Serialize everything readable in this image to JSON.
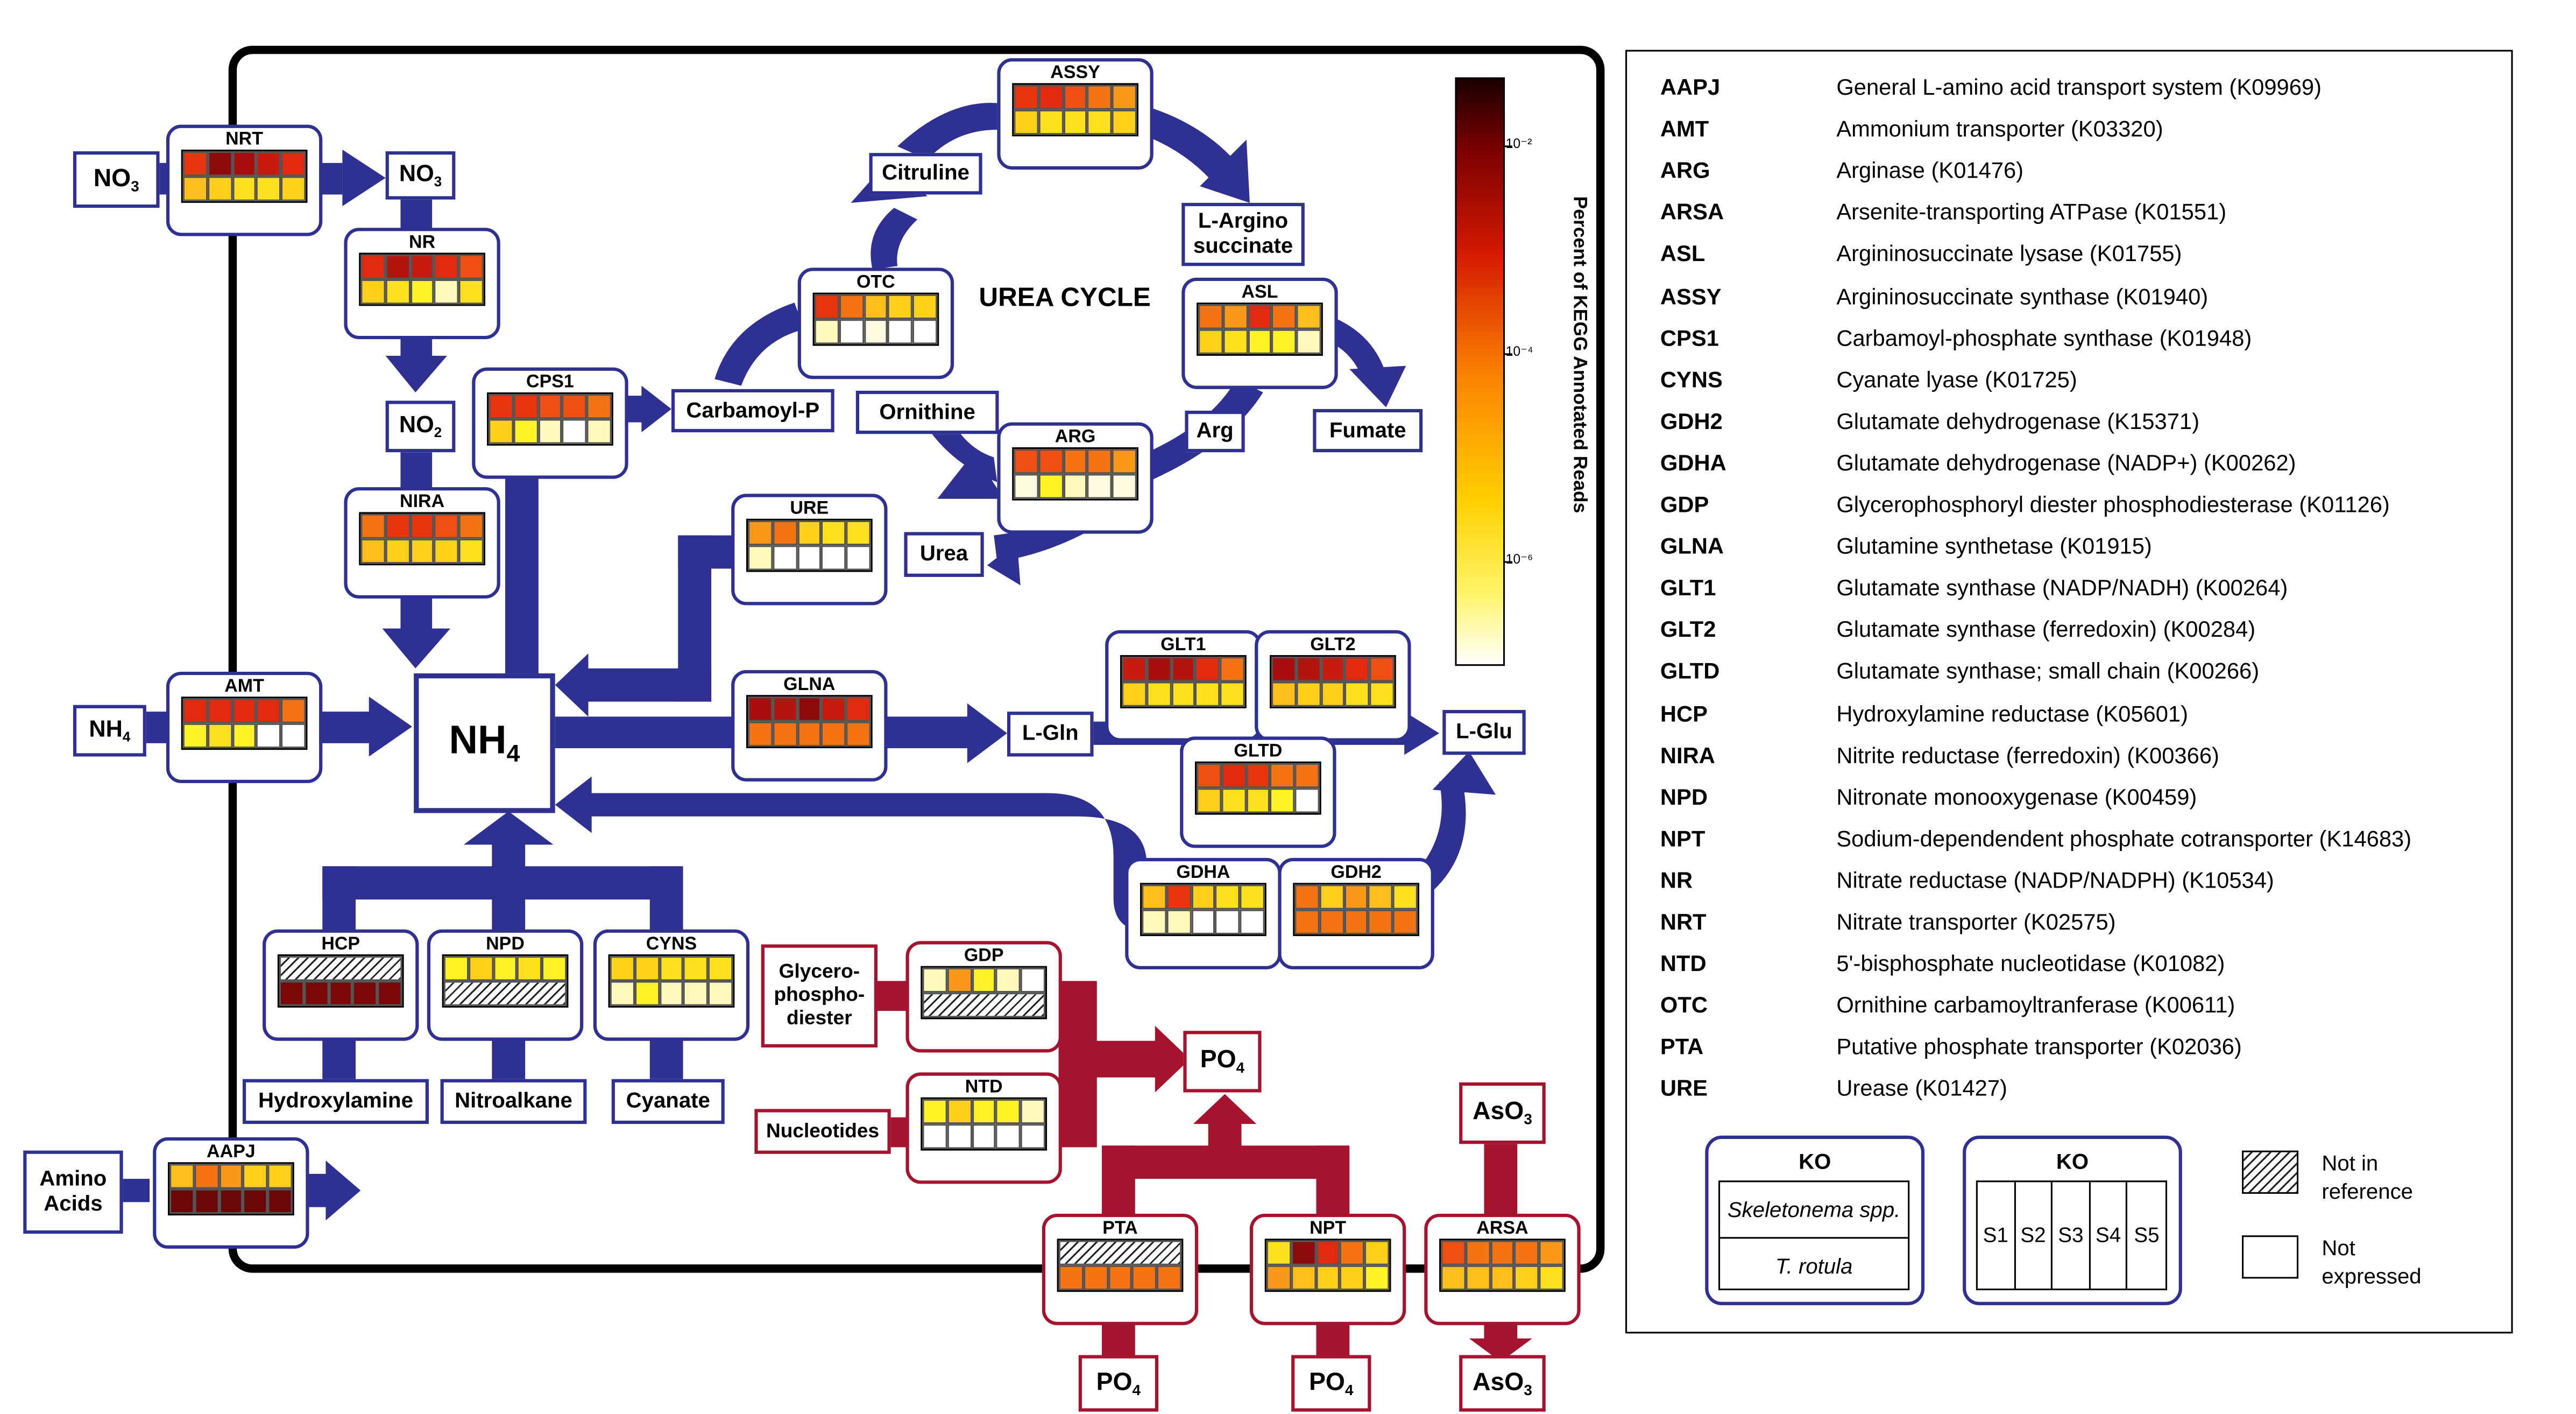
{
  "colors": {
    "blue": "#2e3192",
    "red": "#a5132e"
  },
  "colorbar": {
    "label": "Percent of KEGG Annotated Reads",
    "ticks": [
      "10⁻²",
      "10⁻⁴",
      "10⁻⁶"
    ]
  },
  "title": "UREA CYCLE",
  "nodes": {
    "no3_out": "NO3",
    "no3_in": "NO3",
    "no2": "NO2",
    "nh4_out": "NH4",
    "nh4_main": "NH4",
    "carbamoyl_p": "Carbamoyl-P",
    "citruline": "Citruline",
    "l_argino": "L-Argino succinate",
    "ornithine": "Ornithine",
    "arg": "Arg",
    "fumate": "Fumate",
    "urea": "Urea",
    "l_gln": "L-Gln",
    "l_glu": "L-Glu",
    "hydroxylamine": "Hydroxylamine",
    "nitroalkane": "Nitroalkane",
    "cyanate": "Cyanate",
    "amino_acids": "Amino Acids",
    "glycerophosphodiester": "Glycero-phospho-diester",
    "nucleotides": "Nucleotides",
    "po4_center": "PO4",
    "aso3_top": "AsO3",
    "po4_pta": "PO4",
    "po4_npt": "PO4",
    "aso3_bottom": "AsO3"
  },
  "kos": {
    "NRT": {
      "label": "NRT",
      "top": [
        "#e8340f",
        "#8e0a0a",
        "#a80e0e",
        "#c81a10",
        "#e3290f"
      ],
      "bottom": [
        "#ffbe19",
        "#ffcf1a",
        "#ffe21d",
        "#ffe21d",
        "#ffd21a"
      ]
    },
    "NR": {
      "label": "NR",
      "top": [
        "#e3290f",
        "#b41410",
        "#c81a10",
        "#e3290f",
        "#ef4f11"
      ],
      "bottom": [
        "#ffcf1a",
        "#ffe21d",
        "#fff226",
        "#fff9bc",
        "#ffe21d"
      ]
    },
    "NIRA": {
      "label": "NIRA",
      "top": [
        "#f47414",
        "#e8340f",
        "#e8340f",
        "#ef4f11",
        "#f47414"
      ],
      "bottom": [
        "#ffbe19",
        "#ffcf1a",
        "#ffcf1a",
        "#ffd21a",
        "#ffe21d"
      ]
    },
    "AMT": {
      "label": "AMT",
      "top": [
        "#e3290f",
        "#e3290f",
        "#e3290f",
        "#e3290f",
        "#f47414"
      ],
      "bottom": [
        "#fff226",
        "#ffe21d",
        "#fff226",
        "#ffffff",
        "#ffffff"
      ]
    },
    "CPS1": {
      "label": "CPS1",
      "top": [
        "#e8340f",
        "#e8340f",
        "#ef4f11",
        "#ef4f11",
        "#f47414"
      ],
      "bottom": [
        "#ffcf1a",
        "#fff226",
        "#fff9bc",
        "#ffffff",
        "#fff9bc"
      ]
    },
    "OTC": {
      "label": "OTC",
      "top": [
        "#e8340f",
        "#f47414",
        "#ffbe19",
        "#ffcf1a",
        "#ffd21a"
      ],
      "bottom": [
        "#fff9bc",
        "#ffffff",
        "#fffbe0",
        "#ffffff",
        "#ffffff"
      ]
    },
    "ASSY": {
      "label": "ASSY",
      "top": [
        "#e8340f",
        "#e3290f",
        "#ef4f11",
        "#f47414",
        "#fa981a"
      ],
      "bottom": [
        "#ffcf1a",
        "#ffe21d",
        "#ffe21d",
        "#ffe21d",
        "#ffd21a"
      ]
    },
    "ASL": {
      "label": "ASL",
      "top": [
        "#f47414",
        "#fa981a",
        "#e3290f",
        "#f47414",
        "#ffbe19"
      ],
      "bottom": [
        "#ffd21a",
        "#ffe21d",
        "#fff226",
        "#fff226",
        "#fff9bc"
      ]
    },
    "ARG": {
      "label": "ARG",
      "top": [
        "#ef4f11",
        "#ef4f11",
        "#f47414",
        "#f47414",
        "#fa981a"
      ],
      "bottom": [
        "#fffbe0",
        "#fff226",
        "#fff9bc",
        "#fffbe0",
        "#fffbe0"
      ]
    },
    "URE": {
      "label": "URE",
      "top": [
        "#fa981a",
        "#f47414",
        "#ffcf1a",
        "#ffe21d",
        "#ffe21d"
      ],
      "bottom": [
        "#fff9bc",
        "#ffffff",
        "#ffffff",
        "#ffffff",
        "#ffffff"
      ]
    },
    "GLNA": {
      "label": "GLNA",
      "top": [
        "#a80e0e",
        "#b41410",
        "#8e0a0a",
        "#c81a10",
        "#e3290f"
      ],
      "bottom": [
        "#f47414",
        "#f47414",
        "#f47414",
        "#f47414",
        "#f47414"
      ]
    },
    "GLT1": {
      "label": "GLT1",
      "top": [
        "#c81a10",
        "#a80e0e",
        "#b41410",
        "#e3290f",
        "#f47414"
      ],
      "bottom": [
        "#ffcf1a",
        "#ffe21d",
        "#ffe21d",
        "#ffe21d",
        "#ffe21d"
      ]
    },
    "GLT2": {
      "label": "GLT2",
      "top": [
        "#a80e0e",
        "#b41410",
        "#c81a10",
        "#e3290f",
        "#ef4f11"
      ],
      "bottom": [
        "#ffbe19",
        "#ffcf1a",
        "#ffcf1a",
        "#ffe21d",
        "#ffe21d"
      ]
    },
    "GLTD": {
      "label": "GLTD",
      "top": [
        "#ef4f11",
        "#e3290f",
        "#e8340f",
        "#f47414",
        "#f47414"
      ],
      "bottom": [
        "#ffcf1a",
        "#ffe21d",
        "#ffe21d",
        "#fff226",
        "#ffffff"
      ]
    },
    "GDHA": {
      "label": "GDHA",
      "top": [
        "#ffbe19",
        "#e8340f",
        "#ffcf1a",
        "#ffe21d",
        "#ffe21d"
      ],
      "bottom": [
        "#fff9bc",
        "#fff9bc",
        "#ffffff",
        "#ffffff",
        "#ffffff"
      ]
    },
    "GDH2": {
      "label": "GDH2",
      "top": [
        "#f47414",
        "#ffcf1a",
        "#fa981a",
        "#ffbe19",
        "#ffe21d"
      ],
      "bottom": [
        "#f47414",
        "#f47414",
        "#f47414",
        "#f47414",
        "#f47414"
      ]
    },
    "HCP": {
      "label": "HCP",
      "top": "hatch",
      "bottom": [
        "#7a0808",
        "#7a0808",
        "#7a0808",
        "#7a0808",
        "#7a0808"
      ]
    },
    "NPD": {
      "label": "NPD",
      "top": [
        "#fff226",
        "#ffcf1a",
        "#fff226",
        "#ffe21d",
        "#fff226"
      ],
      "bottom": "hatch"
    },
    "CYNS": {
      "label": "CYNS",
      "top": [
        "#ffd21a",
        "#ffd21a",
        "#ffe21d",
        "#ffe21d",
        "#ffe21d"
      ],
      "bottom": [
        "#fff9bc",
        "#fff226",
        "#fff9bc",
        "#fff9bc",
        "#fff9bc"
      ]
    },
    "AAPJ": {
      "label": "AAPJ",
      "top": [
        "#ffbe19",
        "#f47414",
        "#fa981a",
        "#ffcf1a",
        "#ffcf1a"
      ],
      "bottom": [
        "#6b0707",
        "#6b0707",
        "#6b0707",
        "#6b0707",
        "#6b0707"
      ]
    },
    "GDP": {
      "label": "GDP",
      "top": [
        "#fff9bc",
        "#fa981a",
        "#fff226",
        "#fff9bc",
        "#ffffff"
      ],
      "bottom": "hatch"
    },
    "NTD": {
      "label": "NTD",
      "top": [
        "#fff226",
        "#ffcf1a",
        "#fff226",
        "#fff226",
        "#fff9bc"
      ],
      "bottom": [
        "#ffffff",
        "#ffffff",
        "#ffffff",
        "#ffffff",
        "#ffffff"
      ]
    },
    "PTA": {
      "label": "PTA",
      "top": "hatch",
      "bottom": [
        "#f47414",
        "#f47414",
        "#f47414",
        "#f47414",
        "#f47414"
      ]
    },
    "NPT": {
      "label": "NPT",
      "top": [
        "#ffe21d",
        "#8e0a0a",
        "#e3290f",
        "#f47414",
        "#ffcf1a"
      ],
      "bottom": [
        "#fa981a",
        "#ffbe19",
        "#ffcf1a",
        "#ffcf1a",
        "#fff226"
      ]
    },
    "ARSA": {
      "label": "ARSA",
      "top": [
        "#ef4f11",
        "#f47414",
        "#f47414",
        "#f47414",
        "#fa981a"
      ],
      "bottom": [
        "#ffbe19",
        "#ffbe19",
        "#ffbe19",
        "#ffcf1a",
        "#ffe21d"
      ]
    }
  },
  "legend": [
    {
      "abbr": "AAPJ",
      "desc": "General L-amino acid transport system (K09969)"
    },
    {
      "abbr": "AMT",
      "desc": "Ammonium transporter (K03320)"
    },
    {
      "abbr": "ARG",
      "desc": "Arginase (K01476)"
    },
    {
      "abbr": "ARSA",
      "desc": "Arsenite-transporting ATPase (K01551)"
    },
    {
      "abbr": "ASL",
      "desc": "Argininosuccinate lysase (K01755)"
    },
    {
      "abbr": "ASSY",
      "desc": "Argininosuccinate synthase (K01940)"
    },
    {
      "abbr": "CPS1",
      "desc": "Carbamoyl-phosphate synthase (K01948)"
    },
    {
      "abbr": "CYNS",
      "desc": "Cyanate lyase (K01725)"
    },
    {
      "abbr": "GDH2",
      "desc": "Glutamate dehydrogenase (K15371)"
    },
    {
      "abbr": "GDHA",
      "desc": "Glutamate dehydrogenase (NADP+) (K00262)"
    },
    {
      "abbr": "GDP",
      "desc": "Glycerophosphoryl diester phosphodiesterase (K01126)"
    },
    {
      "abbr": "GLNA",
      "desc": "Glutamine synthetase (K01915)"
    },
    {
      "abbr": "GLT1",
      "desc": "Glutamate synthase (NADP/NADH) (K00264)"
    },
    {
      "abbr": "GLT2",
      "desc": "Glutamate synthase (ferredoxin) (K00284)"
    },
    {
      "abbr": "GLTD",
      "desc": "Glutamate synthase; small chain (K00266)"
    },
    {
      "abbr": "HCP",
      "desc": "Hydroxylamine reductase (K05601)"
    },
    {
      "abbr": "NIRA",
      "desc": "Nitrite reductase (ferredoxin) (K00366)"
    },
    {
      "abbr": "NPD",
      "desc": "Nitronate monooxygenase (K00459)"
    },
    {
      "abbr": "NPT",
      "desc": "Sodium-dependendent phosphate cotransporter (K14683)"
    },
    {
      "abbr": "NR",
      "desc": "Nitrate reductase (NADP/NADPH) (K10534)"
    },
    {
      "abbr": "NRT",
      "desc": "Nitrate transporter (K02575)"
    },
    {
      "abbr": "NTD",
      "desc": "5'-bisphosphate nucleotidase (K01082)"
    },
    {
      "abbr": "OTC",
      "desc": "Ornithine carbamoyltranferase (K00611)"
    },
    {
      "abbr": "PTA",
      "desc": "Putative phosphate transporter (K02036)"
    },
    {
      "abbr": "URE",
      "desc": "Urease (K01427)"
    }
  ],
  "key": {
    "ko_title": "KO",
    "row1": "Skeletonema spp.",
    "row2": "T. rotula",
    "samples": [
      "S1",
      "S2",
      "S3",
      "S4",
      "S5"
    ],
    "not_in_reference": "Not in reference",
    "not_expressed": "Not expressed"
  }
}
